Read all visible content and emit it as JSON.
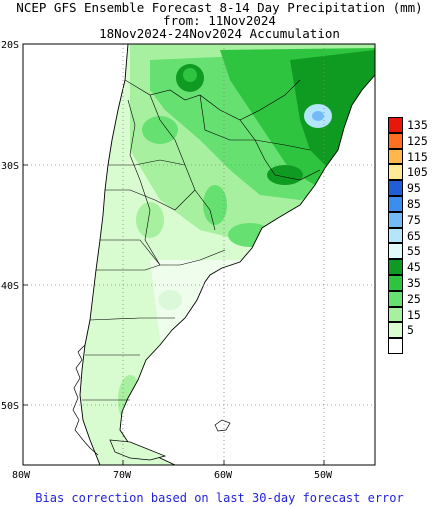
{
  "title": {
    "line1": "NCEP GFS Ensemble Forecast 8-14 Day Precipitation (mm)",
    "line2": "from: 11Nov2024",
    "line3": "18Nov2024-24Nov2024 Accumulation"
  },
  "footer": "Bias correction based on last 30-day forecast error",
  "axes": {
    "lat_ticks": [
      "20S",
      "30S",
      "40S",
      "50S"
    ],
    "lon_ticks": [
      "80W",
      "70W",
      "60W",
      "50W"
    ]
  },
  "legend": {
    "items": [
      {
        "label": "135",
        "color": "#e8170a"
      },
      {
        "label": "125",
        "color": "#ff6f1f"
      },
      {
        "label": "115",
        "color": "#ffb64a"
      },
      {
        "label": "105",
        "color": "#ffe994"
      },
      {
        "label": "95",
        "color": "#1f5ed6"
      },
      {
        "label": "85",
        "color": "#3a8ef0"
      },
      {
        "label": "75",
        "color": "#72bbf7"
      },
      {
        "label": "65",
        "color": "#b3e6fb"
      },
      {
        "label": "55",
        "color": "#dffaf9"
      },
      {
        "label": "45",
        "color": "#0f9a22"
      },
      {
        "label": "35",
        "color": "#2fc43f"
      },
      {
        "label": "25",
        "color": "#66e070"
      },
      {
        "label": "15",
        "color": "#a6f0a0"
      },
      {
        "label": "5",
        "color": "#d8fbd0"
      },
      {
        "label": "",
        "color": "#ffffff"
      }
    ]
  }
}
